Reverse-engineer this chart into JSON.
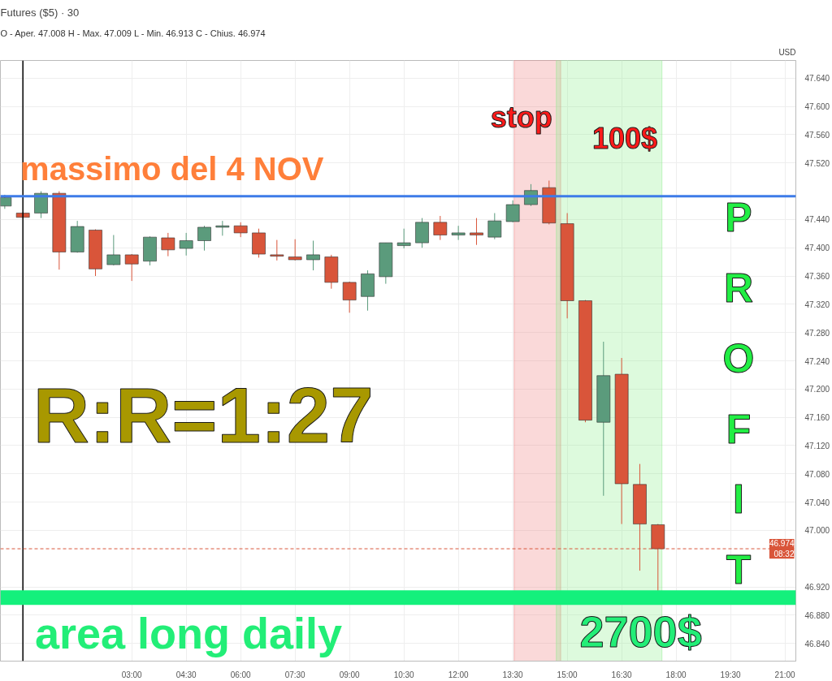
{
  "chart_data": {
    "type": "candlestick",
    "title": "Futures ($5) · 30",
    "subtitle": "O - Aper. 47.008  H - Max. 47.009  L - Min. 46.913  C - Chius. 46.974",
    "x": [
      -0.5,
      0,
      0.5,
      1,
      1.5,
      2,
      2.5,
      3,
      3.5,
      4,
      4.5,
      5,
      5.5,
      6,
      6.5,
      7,
      7.5,
      8,
      8.5,
      9,
      9.5,
      10,
      10.5,
      11,
      11.5,
      12,
      12.5,
      13,
      13.5,
      14,
      14.5,
      15,
      15.5,
      16,
      16.5,
      17,
      17.5
    ],
    "ohlc": [
      [
        47.459,
        47.475,
        47.455,
        47.471
      ],
      [
        47.449,
        47.45,
        47.442,
        47.443
      ],
      [
        47.449,
        47.48,
        47.442,
        47.477
      ],
      [
        47.477,
        47.48,
        47.369,
        47.394
      ],
      [
        47.394,
        47.438,
        47.393,
        47.43
      ],
      [
        47.425,
        47.426,
        47.36,
        47.37
      ],
      [
        47.376,
        47.418,
        47.375,
        47.39
      ],
      [
        47.39,
        47.391,
        47.353,
        47.377
      ],
      [
        47.381,
        47.416,
        47.375,
        47.415
      ],
      [
        47.414,
        47.421,
        47.388,
        47.397
      ],
      [
        47.399,
        47.421,
        47.389,
        47.41
      ],
      [
        47.41,
        47.431,
        47.396,
        47.429
      ],
      [
        47.429,
        47.438,
        47.417,
        47.431
      ],
      [
        47.431,
        47.436,
        47.415,
        47.421
      ],
      [
        47.421,
        47.427,
        47.386,
        47.391
      ],
      [
        47.39,
        47.411,
        47.382,
        47.388
      ],
      [
        47.387,
        47.412,
        47.382,
        47.383
      ],
      [
        47.383,
        47.41,
        47.368,
        47.39
      ],
      [
        47.387,
        47.39,
        47.342,
        47.351
      ],
      [
        47.351,
        47.352,
        47.308,
        47.326
      ],
      [
        47.331,
        47.368,
        47.311,
        47.363
      ],
      [
        47.359,
        47.407,
        47.349,
        47.407
      ],
      [
        47.403,
        47.427,
        47.399,
        47.407
      ],
      [
        47.407,
        47.442,
        47.4,
        47.436
      ],
      [
        47.436,
        47.445,
        47.411,
        47.418
      ],
      [
        47.418,
        47.431,
        47.411,
        47.421
      ],
      [
        47.421,
        47.442,
        47.404,
        47.418
      ],
      [
        47.415,
        47.449,
        47.412,
        47.438
      ],
      [
        47.437,
        47.467,
        47.436,
        47.461
      ],
      [
        47.461,
        47.49,
        47.459,
        47.481
      ],
      [
        47.485,
        47.495,
        47.433,
        47.435
      ],
      [
        47.434,
        47.449,
        47.3,
        47.325
      ],
      [
        47.325,
        47.326,
        47.153,
        47.156
      ],
      [
        47.153,
        47.267,
        47.049,
        47.219
      ],
      [
        47.221,
        47.244,
        47.009,
        47.066
      ],
      [
        47.065,
        47.094,
        46.943,
        47.009
      ],
      [
        47.008,
        47.009,
        46.913,
        46.974
      ]
    ],
    "colors": [
      "#5b9b7c",
      "#d9553a",
      "#5b9b7c",
      "#d9553a",
      "#5b9b7c",
      "#d9553a",
      "#5b9b7c",
      "#d9553a",
      "#5b9b7c",
      "#d9553a",
      "#5b9b7c",
      "#5b9b7c",
      "#5b9b7c",
      "#d9553a",
      "#d9553a",
      "#d9553a",
      "#d9553a",
      "#5b9b7c",
      "#d9553a",
      "#d9553a",
      "#5b9b7c",
      "#5b9b7c",
      "#5b9b7c",
      "#5b9b7c",
      "#d9553a",
      "#5b9b7c",
      "#d9553a",
      "#5b9b7c",
      "#5b9b7c",
      "#5b9b7c",
      "#d9553a",
      "#d9553a",
      "#d9553a",
      "#5b9b7c",
      "#d9553a",
      "#d9553a",
      "#d9553a"
    ],
    "xlim": [
      -0.62,
      21.3
    ],
    "xticks": [
      {
        "value": 3,
        "label": "03:00"
      },
      {
        "value": 4.5,
        "label": "04:30"
      },
      {
        "value": 6,
        "label": "06:00"
      },
      {
        "value": 7.5,
        "label": "07:30"
      },
      {
        "value": 9,
        "label": "09:00"
      },
      {
        "value": 10.5,
        "label": "10:30"
      },
      {
        "value": 12,
        "label": "12:00"
      },
      {
        "value": 13.5,
        "label": "13:30"
      },
      {
        "value": 15,
        "label": "15:00"
      },
      {
        "value": 16.5,
        "label": "16:30"
      },
      {
        "value": 18,
        "label": "18:00"
      },
      {
        "value": 19.5,
        "label": "19:30"
      },
      {
        "value": 21,
        "label": "21:00"
      }
    ],
    "ylim": [
      46.815,
      47.665
    ],
    "yticks": [
      {
        "value": 46.84,
        "label": "46.840"
      },
      {
        "value": 46.88,
        "label": "46.880"
      },
      {
        "value": 46.92,
        "label": "46.920"
      },
      {
        "value": 47.0,
        "label": "47.000"
      },
      {
        "value": 47.04,
        "label": "47.040"
      },
      {
        "value": 47.08,
        "label": "47.080"
      },
      {
        "value": 47.12,
        "label": "47.120"
      },
      {
        "value": 47.16,
        "label": "47.160"
      },
      {
        "value": 47.2,
        "label": "47.200"
      },
      {
        "value": 47.24,
        "label": "47.240"
      },
      {
        "value": 47.28,
        "label": "47.280"
      },
      {
        "value": 47.32,
        "label": "47.320"
      },
      {
        "value": 47.36,
        "label": "47.360"
      },
      {
        "value": 47.4,
        "label": "47.400"
      },
      {
        "value": 47.44,
        "label": "47.440"
      },
      {
        "value": 47.52,
        "label": "47.520"
      },
      {
        "value": 47.56,
        "label": "47.560"
      },
      {
        "value": 47.6,
        "label": "47.600"
      },
      {
        "value": 47.64,
        "label": "47.640"
      }
    ],
    "grid": true,
    "ref_lines": [
      {
        "axis": "x",
        "value": 0,
        "color": "#000000"
      },
      {
        "axis": "y",
        "value": 47.473,
        "label": "massimo del 4 NOV",
        "color": "#3d7be8"
      },
      {
        "axis": "y",
        "value": 46.905,
        "label": "area long daily",
        "color": "#14f07c"
      },
      {
        "axis": "y",
        "value": 46.974,
        "label": "46.974\n08:32",
        "color": "#d9553a",
        "line_style": "dashed"
      }
    ],
    "bands": [
      {
        "axis": "x",
        "from": 13.54,
        "to": 14.82,
        "color": "#f08080"
      },
      {
        "axis": "x",
        "from": 14.7,
        "to": 17.61,
        "color": "#90ee90"
      }
    ],
    "annotations": [
      "stop",
      "100$",
      "PROFIT",
      "R:R=1:27",
      "2700$",
      "USD"
    ]
  }
}
